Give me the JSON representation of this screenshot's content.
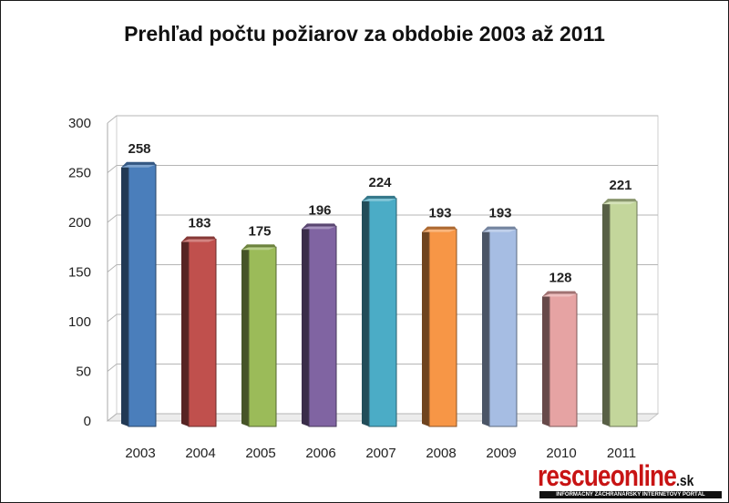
{
  "title": "Prehľad počtu požiarov za obdobie 2003 až 2011",
  "logo": {
    "main": "rescueonline",
    "tld": ".sk",
    "tagline": "INFORMAČNÝ ZÁCHRANÁRSKY INTERNETOVÝ PORTÁL"
  },
  "chart_data": {
    "type": "bar",
    "title": "Prehľad počtu požiarov za obdobie 2003 až 2011",
    "xlabel": "",
    "ylabel": "",
    "categories": [
      "2003",
      "2004",
      "2005",
      "2006",
      "2007",
      "2008",
      "2009",
      "2010",
      "2011"
    ],
    "values": [
      258,
      183,
      175,
      196,
      224,
      193,
      193,
      128,
      221
    ],
    "ylim": [
      0,
      300
    ],
    "yticks": [
      0,
      50,
      100,
      150,
      200,
      250,
      300
    ],
    "grid": true,
    "legend": "none",
    "colors": [
      "#4a7ebb",
      "#c0504d",
      "#9bbb59",
      "#8064a2",
      "#4bacc6",
      "#f79646",
      "#a6bde3",
      "#e6a3a3",
      "#c3d69b"
    ]
  }
}
